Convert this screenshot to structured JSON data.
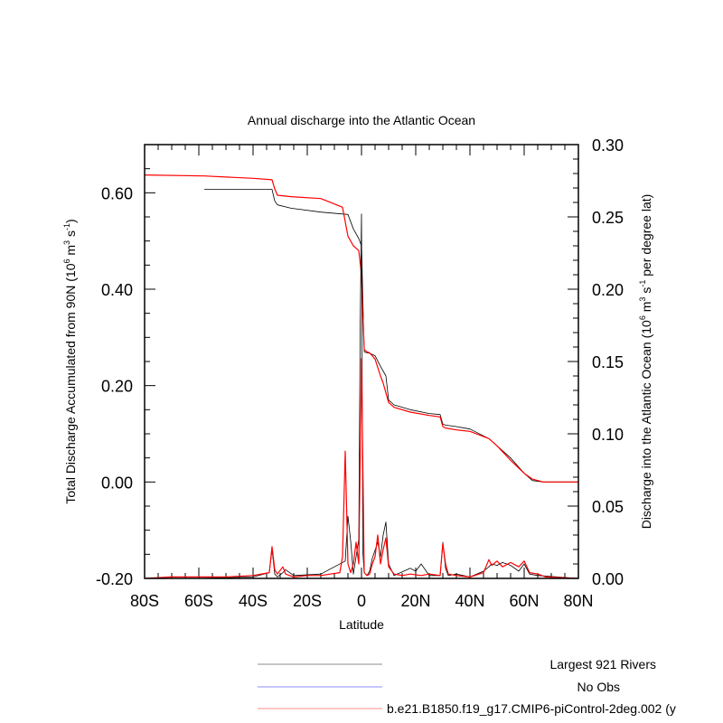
{
  "chart_data": {
    "type": "line",
    "title": "Annual discharge into the Atlantic Ocean",
    "xlabel": "Latitude",
    "ylabel_left": {
      "text": "Total Discharge Accumulated from 90N (10",
      "sup1": "6",
      "mid1": " m",
      "sup2": "3",
      "mid2": " s",
      "sup3": "-1",
      "end": ")"
    },
    "ylabel_right": {
      "text": "Discharge into the Atlantic Ocean (10",
      "sup1": "6",
      "mid1": " m",
      "sup2": "3",
      "mid2": " s",
      "sup3": "-1",
      "end": "  per degree lat)"
    },
    "xlim": [
      -80,
      80
    ],
    "ylim_left": [
      -0.2,
      0.7
    ],
    "ylim_right": [
      0.0,
      0.3
    ],
    "x_ticks": [
      {
        "value": -80,
        "label": "80S"
      },
      {
        "value": -60,
        "label": "60S"
      },
      {
        "value": -40,
        "label": "40S"
      },
      {
        "value": -20,
        "label": "20S"
      },
      {
        "value": 0,
        "label": "0"
      },
      {
        "value": 20,
        "label": "20N"
      },
      {
        "value": 40,
        "label": "40N"
      },
      {
        "value": 60,
        "label": "60N"
      },
      {
        "value": 80,
        "label": "80N"
      }
    ],
    "y_ticks_left": [
      {
        "value": -0.2,
        "label": "-0.20"
      },
      {
        "value": 0.0,
        "label": "0.00"
      },
      {
        "value": 0.2,
        "label": "0.20"
      },
      {
        "value": 0.4,
        "label": "0.40"
      },
      {
        "value": 0.6,
        "label": "0.60"
      }
    ],
    "y_ticks_right": [
      {
        "value": 0.0,
        "label": "0.00"
      },
      {
        "value": 0.05,
        "label": "0.05"
      },
      {
        "value": 0.1,
        "label": "0.10"
      },
      {
        "value": 0.15,
        "label": "0.15"
      },
      {
        "value": 0.2,
        "label": "0.20"
      },
      {
        "value": 0.25,
        "label": "0.25"
      },
      {
        "value": 0.3,
        "label": "0.30"
      }
    ],
    "legend": [
      {
        "label": "Largest 921 Rivers",
        "color": "#000000"
      },
      {
        "label": "No Obs",
        "color": "#0000ff"
      },
      {
        "label": "b.e21.B1850.f19_g17.CMIP6-piControl-2deg.002 (y",
        "color": "#ff0000"
      }
    ],
    "series": [
      {
        "name": "Largest 921 Rivers",
        "axis": "left",
        "color": "#000000",
        "x": [
          -58,
          -33,
          -32,
          -31,
          -26,
          -15,
          -5,
          -3,
          -1,
          0,
          1,
          2,
          3,
          5,
          7,
          9,
          10,
          12,
          18,
          25,
          29,
          30,
          31,
          35,
          40,
          47,
          55,
          60,
          63,
          67,
          70,
          80
        ],
        "y": [
          0.607,
          0.607,
          0.583,
          0.575,
          0.568,
          0.56,
          0.555,
          0.525,
          0.505,
          0.49,
          0.27,
          0.268,
          0.267,
          0.262,
          0.24,
          0.22,
          0.17,
          0.16,
          0.15,
          0.142,
          0.14,
          0.12,
          0.118,
          0.115,
          0.11,
          0.09,
          0.05,
          0.018,
          0.003,
          0.0,
          0.0,
          0.0
        ]
      },
      {
        "name": "b.e21.B1850.f19_g17.CMIP6-piControl-2deg.002 (y",
        "axis": "left",
        "color": "#ff0000",
        "x": [
          -80,
          -58,
          -40,
          -33,
          -32,
          -31,
          -26,
          -15,
          -7,
          -5,
          -3,
          -2,
          -1,
          0,
          1,
          2,
          3,
          5,
          7,
          8,
          10,
          12,
          18,
          25,
          29,
          30,
          31,
          35,
          40,
          47,
          50,
          55,
          60,
          63,
          67,
          70,
          80
        ],
        "y": [
          0.637,
          0.635,
          0.63,
          0.627,
          0.608,
          0.595,
          0.592,
          0.588,
          0.57,
          0.51,
          0.49,
          0.485,
          0.48,
          0.43,
          0.275,
          0.27,
          0.268,
          0.255,
          0.22,
          0.205,
          0.165,
          0.155,
          0.145,
          0.138,
          0.135,
          0.115,
          0.112,
          0.108,
          0.105,
          0.09,
          0.075,
          0.045,
          0.018,
          0.006,
          0.0,
          0.0,
          0.0
        ]
      },
      {
        "name": "Largest 921 Rivers (per degree lat)",
        "axis": "right",
        "color": "#000000",
        "x": [
          -60,
          -40,
          -34,
          -33,
          -32,
          -31,
          -29,
          -28,
          -25,
          -15,
          -6,
          -5,
          -4,
          -3,
          -2,
          -1,
          -0.5,
          0,
          0.5,
          1,
          2,
          3,
          4,
          6,
          7,
          8,
          9,
          10,
          12,
          18,
          20,
          22,
          25,
          29,
          30,
          31,
          32,
          35,
          40,
          45,
          47,
          48,
          50,
          52,
          55,
          58,
          60,
          62,
          65,
          80
        ],
        "y": [
          0,
          0.001,
          0.004,
          0.02,
          0.003,
          0.001,
          0.004,
          0.006,
          0.002,
          0.003,
          0.012,
          0.043,
          0.026,
          0.003,
          0.015,
          0.027,
          0.17,
          0.252,
          0.018,
          0.004,
          0.002,
          0.005,
          0.014,
          0.025,
          0.015,
          0.03,
          0.039,
          0.01,
          0.002,
          0.007,
          0.005,
          0.01,
          0.002,
          0.002,
          0.025,
          0.007,
          0.002,
          0.003,
          0.001,
          0.005,
          0.008,
          0.01,
          0.009,
          0.011,
          0.009,
          0.005,
          0.01,
          0.003,
          0.002,
          0
        ]
      },
      {
        "name": "b.e21.B1850.f19_g17.CMIP6-piControl-2deg.002 (y (per degree lat)",
        "axis": "right",
        "color": "#ff0000",
        "x": [
          -80,
          -70,
          -50,
          -40,
          -34,
          -33,
          -32,
          -31,
          -29,
          -28,
          -25,
          -20,
          -15,
          -8,
          -7,
          -6,
          -5,
          -4,
          -3,
          -2,
          -1,
          0,
          1,
          2,
          3,
          4,
          5,
          6,
          7,
          8,
          9,
          10,
          12,
          15,
          18,
          22,
          25,
          29,
          30,
          31,
          32,
          35,
          40,
          45,
          47,
          48,
          50,
          52,
          55,
          58,
          60,
          62,
          65,
          68,
          80
        ],
        "y": [
          0,
          0.001,
          0.001,
          0.002,
          0.004,
          0.022,
          0.006,
          0.003,
          0.008,
          0.003,
          0.001,
          0.002,
          0.002,
          0.004,
          0.015,
          0.088,
          0.01,
          0.004,
          0.01,
          0.025,
          0.01,
          0.152,
          0.004,
          0.002,
          0.003,
          0.01,
          0.015,
          0.03,
          0.01,
          0.02,
          0.028,
          0.008,
          0.003,
          0.002,
          0.003,
          0.002,
          0.003,
          0.002,
          0.024,
          0.01,
          0.003,
          0.002,
          0.001,
          0.004,
          0.013,
          0.009,
          0.012,
          0.008,
          0.011,
          0.008,
          0.012,
          0.004,
          0.003,
          0.001,
          0
        ]
      }
    ]
  }
}
